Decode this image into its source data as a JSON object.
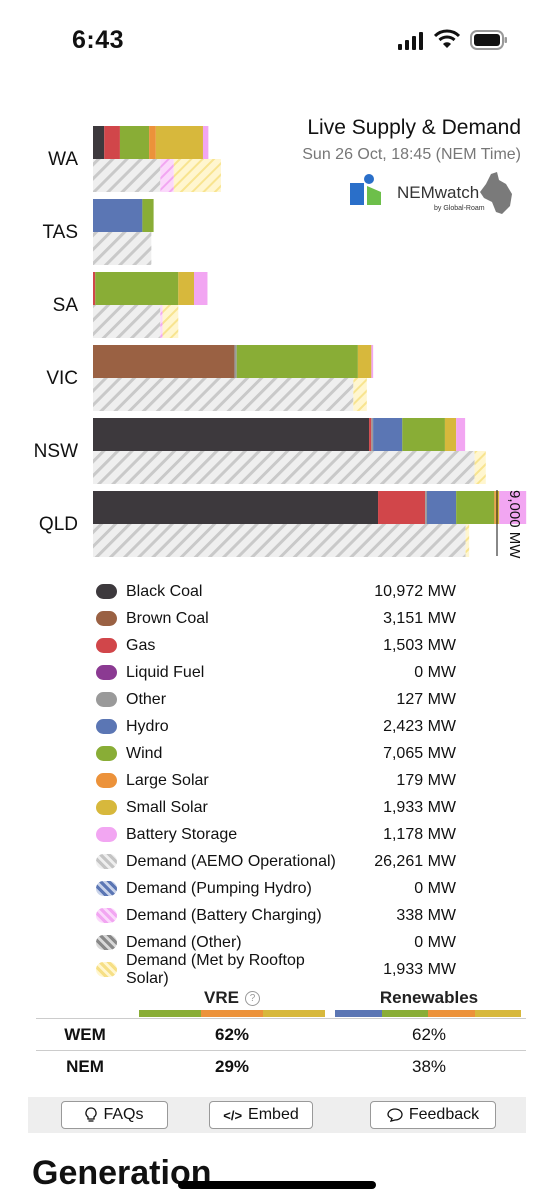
{
  "status_bar": {
    "time": "6:43"
  },
  "header": {
    "title": "Live Supply & Demand",
    "subtitle": "Sun 26 Oct, 18:45 (NEM Time)",
    "logo_text": "NEMwatch",
    "logo_sub": "by Global-Roam"
  },
  "colors": {
    "black_coal": "#3d393d",
    "brown_coal": "#9a6143",
    "gas": "#d1464a",
    "liquid_fuel": "#8b3a92",
    "other": "#9a9a9a",
    "hydro": "#5b76b4",
    "wind": "#89ad36",
    "large_solar": "#ec923a",
    "small_solar": "#d7b83c",
    "battery": "#f2a6f2",
    "demand_hatch": "#d6d6d6",
    "rooftop_hatch": "#fbe79b"
  },
  "chart_data": {
    "type": "bar",
    "orientation": "horizontal",
    "stacked": true,
    "axis_label": "9,000 MW",
    "xlim": [
      0,
      9000
    ],
    "categories": [
      "WA",
      "TAS",
      "SA",
      "VIC",
      "NSW",
      "QLD"
    ],
    "supply_series": [
      {
        "name": "Black Coal",
        "values": [
          250,
          0,
          0,
          0,
          6150,
          6350
        ]
      },
      {
        "name": "Brown Coal",
        "values": [
          0,
          0,
          0,
          3151,
          0,
          0
        ]
      },
      {
        "name": "Gas",
        "values": [
          350,
          0,
          50,
          0,
          50,
          1050
        ]
      },
      {
        "name": "Other",
        "values": [
          0,
          0,
          0,
          50,
          40,
          40
        ]
      },
      {
        "name": "Hydro",
        "values": [
          0,
          1100,
          0,
          0,
          650,
          650
        ]
      },
      {
        "name": "Wind",
        "values": [
          650,
          250,
          1850,
          2700,
          950,
          850
        ]
      },
      {
        "name": "Large Solar",
        "values": [
          150,
          0,
          0,
          0,
          0,
          30
        ]
      },
      {
        "name": "Small Solar",
        "values": [
          1050,
          0,
          350,
          300,
          250,
          80
        ]
      },
      {
        "name": "Battery Storage",
        "values": [
          120,
          0,
          300,
          40,
          200,
          600
        ]
      }
    ],
    "demand_series": [
      {
        "name": "Demand (AEMO Operational)",
        "values": [
          1500,
          1300,
          1500,
          5800,
          8500,
          8300
        ]
      },
      {
        "name": "Demand (Battery Charging)",
        "values": [
          300,
          0,
          50,
          0,
          0,
          0
        ]
      },
      {
        "name": "Demand (Met by Rooftop Solar)",
        "values": [
          1050,
          0,
          350,
          300,
          250,
          80
        ]
      }
    ]
  },
  "legend": [
    {
      "name": "Black Coal",
      "value": "10,972 MW",
      "color_key": "black_coal",
      "style": "solid"
    },
    {
      "name": "Brown Coal",
      "value": "3,151 MW",
      "color_key": "brown_coal",
      "style": "solid"
    },
    {
      "name": "Gas",
      "value": "1,503 MW",
      "color_key": "gas",
      "style": "solid"
    },
    {
      "name": "Liquid Fuel",
      "value": "0 MW",
      "color_key": "liquid_fuel",
      "style": "solid"
    },
    {
      "name": "Other",
      "value": "127 MW",
      "color_key": "other",
      "style": "solid"
    },
    {
      "name": "Hydro",
      "value": "2,423 MW",
      "color_key": "hydro",
      "style": "solid"
    },
    {
      "name": "Wind",
      "value": "7,065 MW",
      "color_key": "wind",
      "style": "solid"
    },
    {
      "name": "Large Solar",
      "value": "179 MW",
      "color_key": "large_solar",
      "style": "solid"
    },
    {
      "name": "Small Solar",
      "value": "1,933 MW",
      "color_key": "small_solar",
      "style": "solid"
    },
    {
      "name": "Battery Storage",
      "value": "1,178 MW",
      "color_key": "battery",
      "style": "solid"
    },
    {
      "name": "Demand (AEMO Operational)",
      "value": "26,261 MW",
      "color_key": "demand_hatch",
      "style": "hatch"
    },
    {
      "name": "Demand (Pumping Hydro)",
      "value": "0 MW",
      "color_key": "hydro",
      "style": "hatch"
    },
    {
      "name": "Demand (Battery Charging)",
      "value": "338 MW",
      "color_key": "battery",
      "style": "hatch"
    },
    {
      "name": "Demand (Other)",
      "value": "0 MW",
      "color_key": "other",
      "style": "hatch"
    },
    {
      "name": "Demand (Met by Rooftop Solar)",
      "value": "1,933 MW",
      "color_key": "rooftop_hatch",
      "style": "hatch"
    }
  ],
  "summary": {
    "vre_label": "VRE",
    "renewables_label": "Renewables",
    "rows": [
      {
        "region": "WEM",
        "vre": "62%",
        "renewables": "62%"
      },
      {
        "region": "NEM",
        "vre": "29%",
        "renewables": "38%"
      }
    ]
  },
  "buttons": {
    "faqs": "FAQs",
    "embed": "Embed",
    "feedback": "Feedback"
  },
  "section_heading": "Generation"
}
